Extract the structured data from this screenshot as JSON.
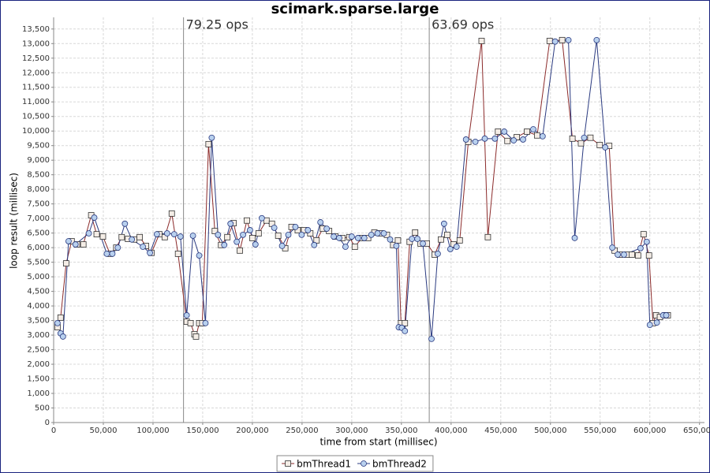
{
  "chart_data": {
    "type": "line",
    "title": "scimark.sparse.large",
    "x_label": "time from start (millisec)",
    "y_label": "loop result (millisec)",
    "xlim": [
      0,
      655000
    ],
    "ylim": [
      0,
      13900
    ],
    "grid": true,
    "legend": "bottom",
    "xticks": [
      0,
      {
        "value": 50000,
        "label": "50,000"
      },
      {
        "value": 100000,
        "label": "100,000"
      },
      {
        "value": 150000,
        "label": "150,000"
      },
      {
        "value": 200000,
        "label": "200,000"
      },
      {
        "value": 250000,
        "label": "250,000"
      },
      {
        "value": 300000,
        "label": "300,000"
      },
      {
        "value": 350000,
        "label": "350,000"
      },
      {
        "value": 400000,
        "label": "400,000"
      },
      {
        "value": 450000,
        "label": "450,000"
      },
      {
        "value": 500000,
        "label": "500,000"
      },
      {
        "value": 550000,
        "label": "550,000"
      },
      {
        "value": 600000,
        "label": "600,000"
      },
      {
        "value": 650000,
        "label": "650,000"
      }
    ],
    "yticks": [
      0,
      500,
      {
        "value": 1000,
        "label": "1,000"
      },
      {
        "value": 1500,
        "label": "1,500"
      },
      {
        "value": 2000,
        "label": "2,000"
      },
      {
        "value": 2500,
        "label": "2,500"
      },
      {
        "value": 3000,
        "label": "3,000"
      },
      {
        "value": 3500,
        "label": "3,500"
      },
      {
        "value": 4000,
        "label": "4,000"
      },
      {
        "value": 4500,
        "label": "4,500"
      },
      {
        "value": 5000,
        "label": "5,000"
      },
      {
        "value": 5500,
        "label": "5,500"
      },
      {
        "value": 6000,
        "label": "6,000"
      },
      {
        "value": 6500,
        "label": "6,500"
      },
      {
        "value": 7000,
        "label": "7,000"
      },
      {
        "value": 7500,
        "label": "7,500"
      },
      {
        "value": 8000,
        "label": "8,000"
      },
      {
        "value": 8500,
        "label": "8,500"
      },
      {
        "value": 9000,
        "label": "9,000"
      },
      {
        "value": 9500,
        "label": "9,500"
      },
      {
        "value": 10000,
        "label": "10,000"
      },
      {
        "value": 10500,
        "label": "10,500"
      },
      {
        "value": 11000,
        "label": "11,000"
      },
      {
        "value": 11500,
        "label": "11,500"
      },
      {
        "value": 12000,
        "label": "12,000"
      },
      {
        "value": 12500,
        "label": "12,500"
      },
      {
        "value": 13000,
        "label": "13,000"
      },
      {
        "value": 13500,
        "label": "13,500"
      }
    ],
    "annotations": [
      {
        "label": "79.25 ops",
        "x": 130700
      },
      {
        "label": "63.69 ops",
        "x": 378000
      }
    ],
    "series": [
      {
        "name": "bmThread1",
        "color": "#8b2a2a",
        "marker": "square",
        "x": [
          3900,
          7000,
          12600,
          18100,
          23600,
          29900,
          37800,
          43300,
          49600,
          56700,
          63000,
          68500,
          74800,
          81100,
          86600,
          92900,
          98400,
          106300,
          111800,
          118900,
          125200,
          133900,
          137800,
          141700,
          143300,
          146500,
          149600,
          155900,
          162200,
          168500,
          174800,
          181100,
          187400,
          194500,
          200000,
          206300,
          214200,
          219700,
          226000,
          233100,
          239400,
          245700,
          252000,
          258300,
          264600,
          270900,
          277200,
          283500,
          290600,
          297600,
          303100,
          310200,
          316500,
          322800,
          329100,
          335400,
          341700,
          346500,
          349600,
          353500,
          358300,
          363800,
          369300,
          375600,
          383500,
          389800,
          396100,
          402400,
          408700,
          417300,
          430700,
          437000,
          447200,
          456700,
          466100,
          476400,
          486600,
          499200,
          511800,
          522100,
          530700,
          540200,
          549600,
          559100,
          564600,
          570100,
          577200,
          581900,
          588200,
          593700,
          599200,
          603100,
          606300,
          610200,
          615700,
          618100
        ],
        "values": [
          3270,
          3600,
          5460,
          6220,
          6110,
          6110,
          7110,
          6460,
          6380,
          5790,
          6000,
          6360,
          6300,
          6280,
          6360,
          6060,
          5820,
          6460,
          6360,
          7170,
          5790,
          3460,
          3410,
          3030,
          2950,
          3410,
          3410,
          9550,
          6570,
          6090,
          6360,
          6840,
          5900,
          6930,
          6330,
          6490,
          6930,
          6820,
          6410,
          5980,
          6710,
          6600,
          6600,
          6490,
          6250,
          6650,
          6570,
          6380,
          6330,
          6360,
          6030,
          6330,
          6330,
          6520,
          6490,
          6440,
          6090,
          6250,
          3410,
          3410,
          6200,
          6520,
          6140,
          6140,
          5760,
          6280,
          6440,
          6110,
          6250,
          9630,
          13090,
          6360,
          9980,
          9660,
          9790,
          9980,
          9850,
          13090,
          13120,
          9740,
          9580,
          9770,
          9520,
          9490,
          5900,
          5760,
          5760,
          5760,
          5730,
          6460,
          5730,
          3410,
          3680,
          3620,
          3680,
          3680
        ]
      },
      {
        "name": "bmThread2",
        "color": "#2a3a80",
        "marker": "circle",
        "x": [
          3900,
          7000,
          9400,
          15000,
          22000,
          35400,
          40900,
          53500,
          59100,
          64600,
          71700,
          78700,
          89800,
          96900,
          103900,
          114200,
          121300,
          127600,
          133900,
          140200,
          146500,
          152800,
          159100,
          165400,
          171700,
          178000,
          184300,
          190600,
          197600,
          203100,
          209500,
          222000,
          229900,
          236200,
          243300,
          249600,
          255900,
          262200,
          268500,
          274800,
          281900,
          287400,
          293700,
          300000,
          306300,
          312600,
          319700,
          326000,
          332300,
          338600,
          344900,
          347300,
          350400,
          353500,
          360600,
          366100,
          371600,
          380300,
          386600,
          392900,
          399200,
          405500,
          415000,
          424400,
          433900,
          444100,
          453500,
          463000,
          472400,
          482700,
          492100,
          504700,
          518100,
          524400,
          533900,
          546500,
          555100,
          562200,
          567700,
          574000,
          590600,
          596900,
          600000,
          607100,
          613400,
          616500
        ],
        "values": [
          3410,
          3060,
          2950,
          6220,
          6110,
          6490,
          7030,
          5790,
          5790,
          6000,
          6820,
          6280,
          6030,
          5820,
          6460,
          6490,
          6460,
          6380,
          3680,
          6410,
          5730,
          3410,
          9770,
          6440,
          6090,
          6820,
          6200,
          6440,
          6600,
          6110,
          7010,
          6680,
          6060,
          6440,
          6710,
          6440,
          6600,
          6090,
          6870,
          6650,
          6380,
          6330,
          6030,
          6380,
          6330,
          6330,
          6440,
          6490,
          6490,
          6280,
          6060,
          3270,
          3250,
          3140,
          6300,
          6300,
          6140,
          2870,
          5790,
          6820,
          5950,
          6030,
          9710,
          9630,
          9740,
          9740,
          9980,
          9680,
          9710,
          10060,
          9820,
          13070,
          13120,
          6330,
          9770,
          13120,
          9440,
          6000,
          5760,
          5760,
          5980,
          6200,
          3350,
          3430,
          3680,
          3680
        ]
      }
    ]
  }
}
